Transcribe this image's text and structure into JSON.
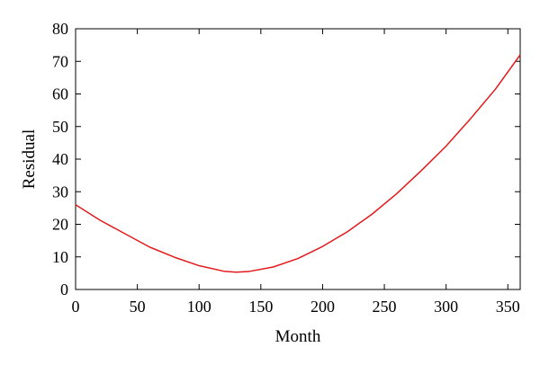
{
  "chart_data": {
    "type": "line",
    "title": "",
    "xlabel": "Month",
    "ylabel": "Residual",
    "xlim": [
      0,
      360
    ],
    "ylim": [
      0,
      80
    ],
    "xticks": [
      0,
      50,
      100,
      150,
      200,
      250,
      300,
      350
    ],
    "yticks": [
      0,
      10,
      20,
      30,
      40,
      50,
      60,
      70,
      80
    ],
    "grid": false,
    "series": [
      {
        "color": "#e31a1c",
        "x": [
          0,
          20,
          40,
          60,
          80,
          100,
          120,
          130,
          140,
          160,
          180,
          200,
          220,
          240,
          260,
          280,
          300,
          320,
          340,
          360
        ],
        "y": [
          26,
          21.2,
          17.1,
          13.0,
          9.9,
          7.3,
          5.6,
          5.3,
          5.5,
          6.9,
          9.5,
          13.2,
          17.7,
          23.1,
          29.4,
          36.5,
          44.0,
          52.5,
          61.5,
          72.0
        ]
      }
    ]
  }
}
